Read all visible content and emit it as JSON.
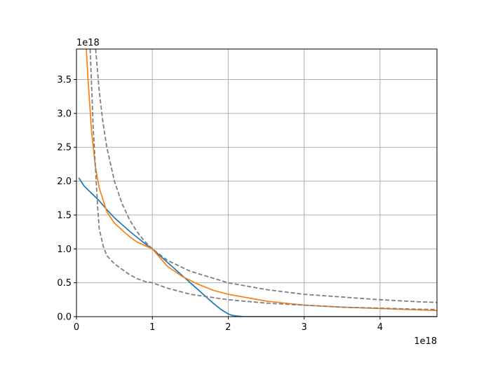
{
  "chart_data": {
    "type": "line",
    "title": "",
    "xlabel": "",
    "ylabel": "",
    "x_offset_text": "1e18",
    "y_offset_text": "1e18",
    "xlim": [
      0,
      4.75
    ],
    "ylim": [
      0,
      3.95
    ],
    "x_ticks": [
      0,
      1,
      2,
      3,
      4
    ],
    "x_tick_labels": [
      "0",
      "1",
      "2",
      "3",
      "4"
    ],
    "y_ticks": [
      0.0,
      0.5,
      1.0,
      1.5,
      2.0,
      2.5,
      3.0,
      3.5
    ],
    "y_tick_labels": [
      "0.0",
      "0.5",
      "1.0",
      "1.5",
      "2.0",
      "2.5",
      "3.0",
      "3.5"
    ],
    "grid": true,
    "legend": "none",
    "series": [
      {
        "color": "#1f77b4",
        "style": "solid",
        "x": [
          0.03,
          0.1,
          0.2,
          0.3,
          0.4,
          0.5,
          0.6,
          0.7,
          0.8,
          0.9,
          1.0,
          1.2,
          1.4,
          1.6,
          1.8,
          1.9,
          2.0,
          2.05,
          2.1,
          2.2,
          2.5,
          3.0,
          3.5,
          4.0,
          4.5,
          4.75
        ],
        "y": [
          2.05,
          1.93,
          1.82,
          1.71,
          1.58,
          1.46,
          1.36,
          1.26,
          1.17,
          1.08,
          1.0,
          0.8,
          0.6,
          0.4,
          0.2,
          0.11,
          0.04,
          0.02,
          0.01,
          0.0,
          0.0,
          0.0,
          0.0,
          0.0,
          0.0,
          0.0
        ]
      },
      {
        "color": "#ff7f0e",
        "style": "solid",
        "x": [
          0.13,
          0.15,
          0.2,
          0.25,
          0.3,
          0.4,
          0.5,
          0.6,
          0.7,
          0.8,
          0.9,
          1.0,
          1.2,
          1.4,
          1.6,
          1.8,
          2.0,
          2.5,
          3.0,
          3.5,
          4.0,
          4.5,
          4.75
        ],
        "y": [
          3.95,
          3.55,
          2.72,
          2.21,
          1.9,
          1.55,
          1.38,
          1.28,
          1.18,
          1.1,
          1.05,
          1.0,
          0.74,
          0.59,
          0.48,
          0.39,
          0.33,
          0.23,
          0.17,
          0.14,
          0.12,
          0.1,
          0.09
        ]
      },
      {
        "color": "#7f7f7f",
        "style": "dashed",
        "x": [
          0.253,
          0.3,
          0.35,
          0.4,
          0.5,
          0.6,
          0.7,
          0.8,
          0.9,
          1.0,
          1.2,
          1.5,
          2.0,
          2.5,
          3.0,
          3.5,
          4.0,
          4.5,
          4.75
        ],
        "y": [
          3.95,
          3.33,
          2.86,
          2.5,
          2.0,
          1.67,
          1.43,
          1.25,
          1.11,
          1.0,
          0.83,
          0.67,
          0.5,
          0.4,
          0.33,
          0.29,
          0.25,
          0.22,
          0.21
        ]
      },
      {
        "color": "#7f7f7f",
        "style": "dashed",
        "x": [
          0.18,
          0.2,
          0.22,
          0.25,
          0.28,
          0.3,
          0.35,
          0.4,
          0.5,
          0.6,
          0.7,
          0.8,
          0.9,
          1.0,
          1.2,
          1.5,
          2.0,
          2.5,
          3.0,
          3.5,
          4.0,
          4.5,
          4.75
        ],
        "y": [
          3.95,
          3.4,
          2.8,
          2.2,
          1.6,
          1.3,
          1.05,
          0.9,
          0.78,
          0.7,
          0.62,
          0.56,
          0.52,
          0.5,
          0.42,
          0.33,
          0.25,
          0.2,
          0.17,
          0.14,
          0.125,
          0.11,
          0.105
        ]
      }
    ]
  }
}
